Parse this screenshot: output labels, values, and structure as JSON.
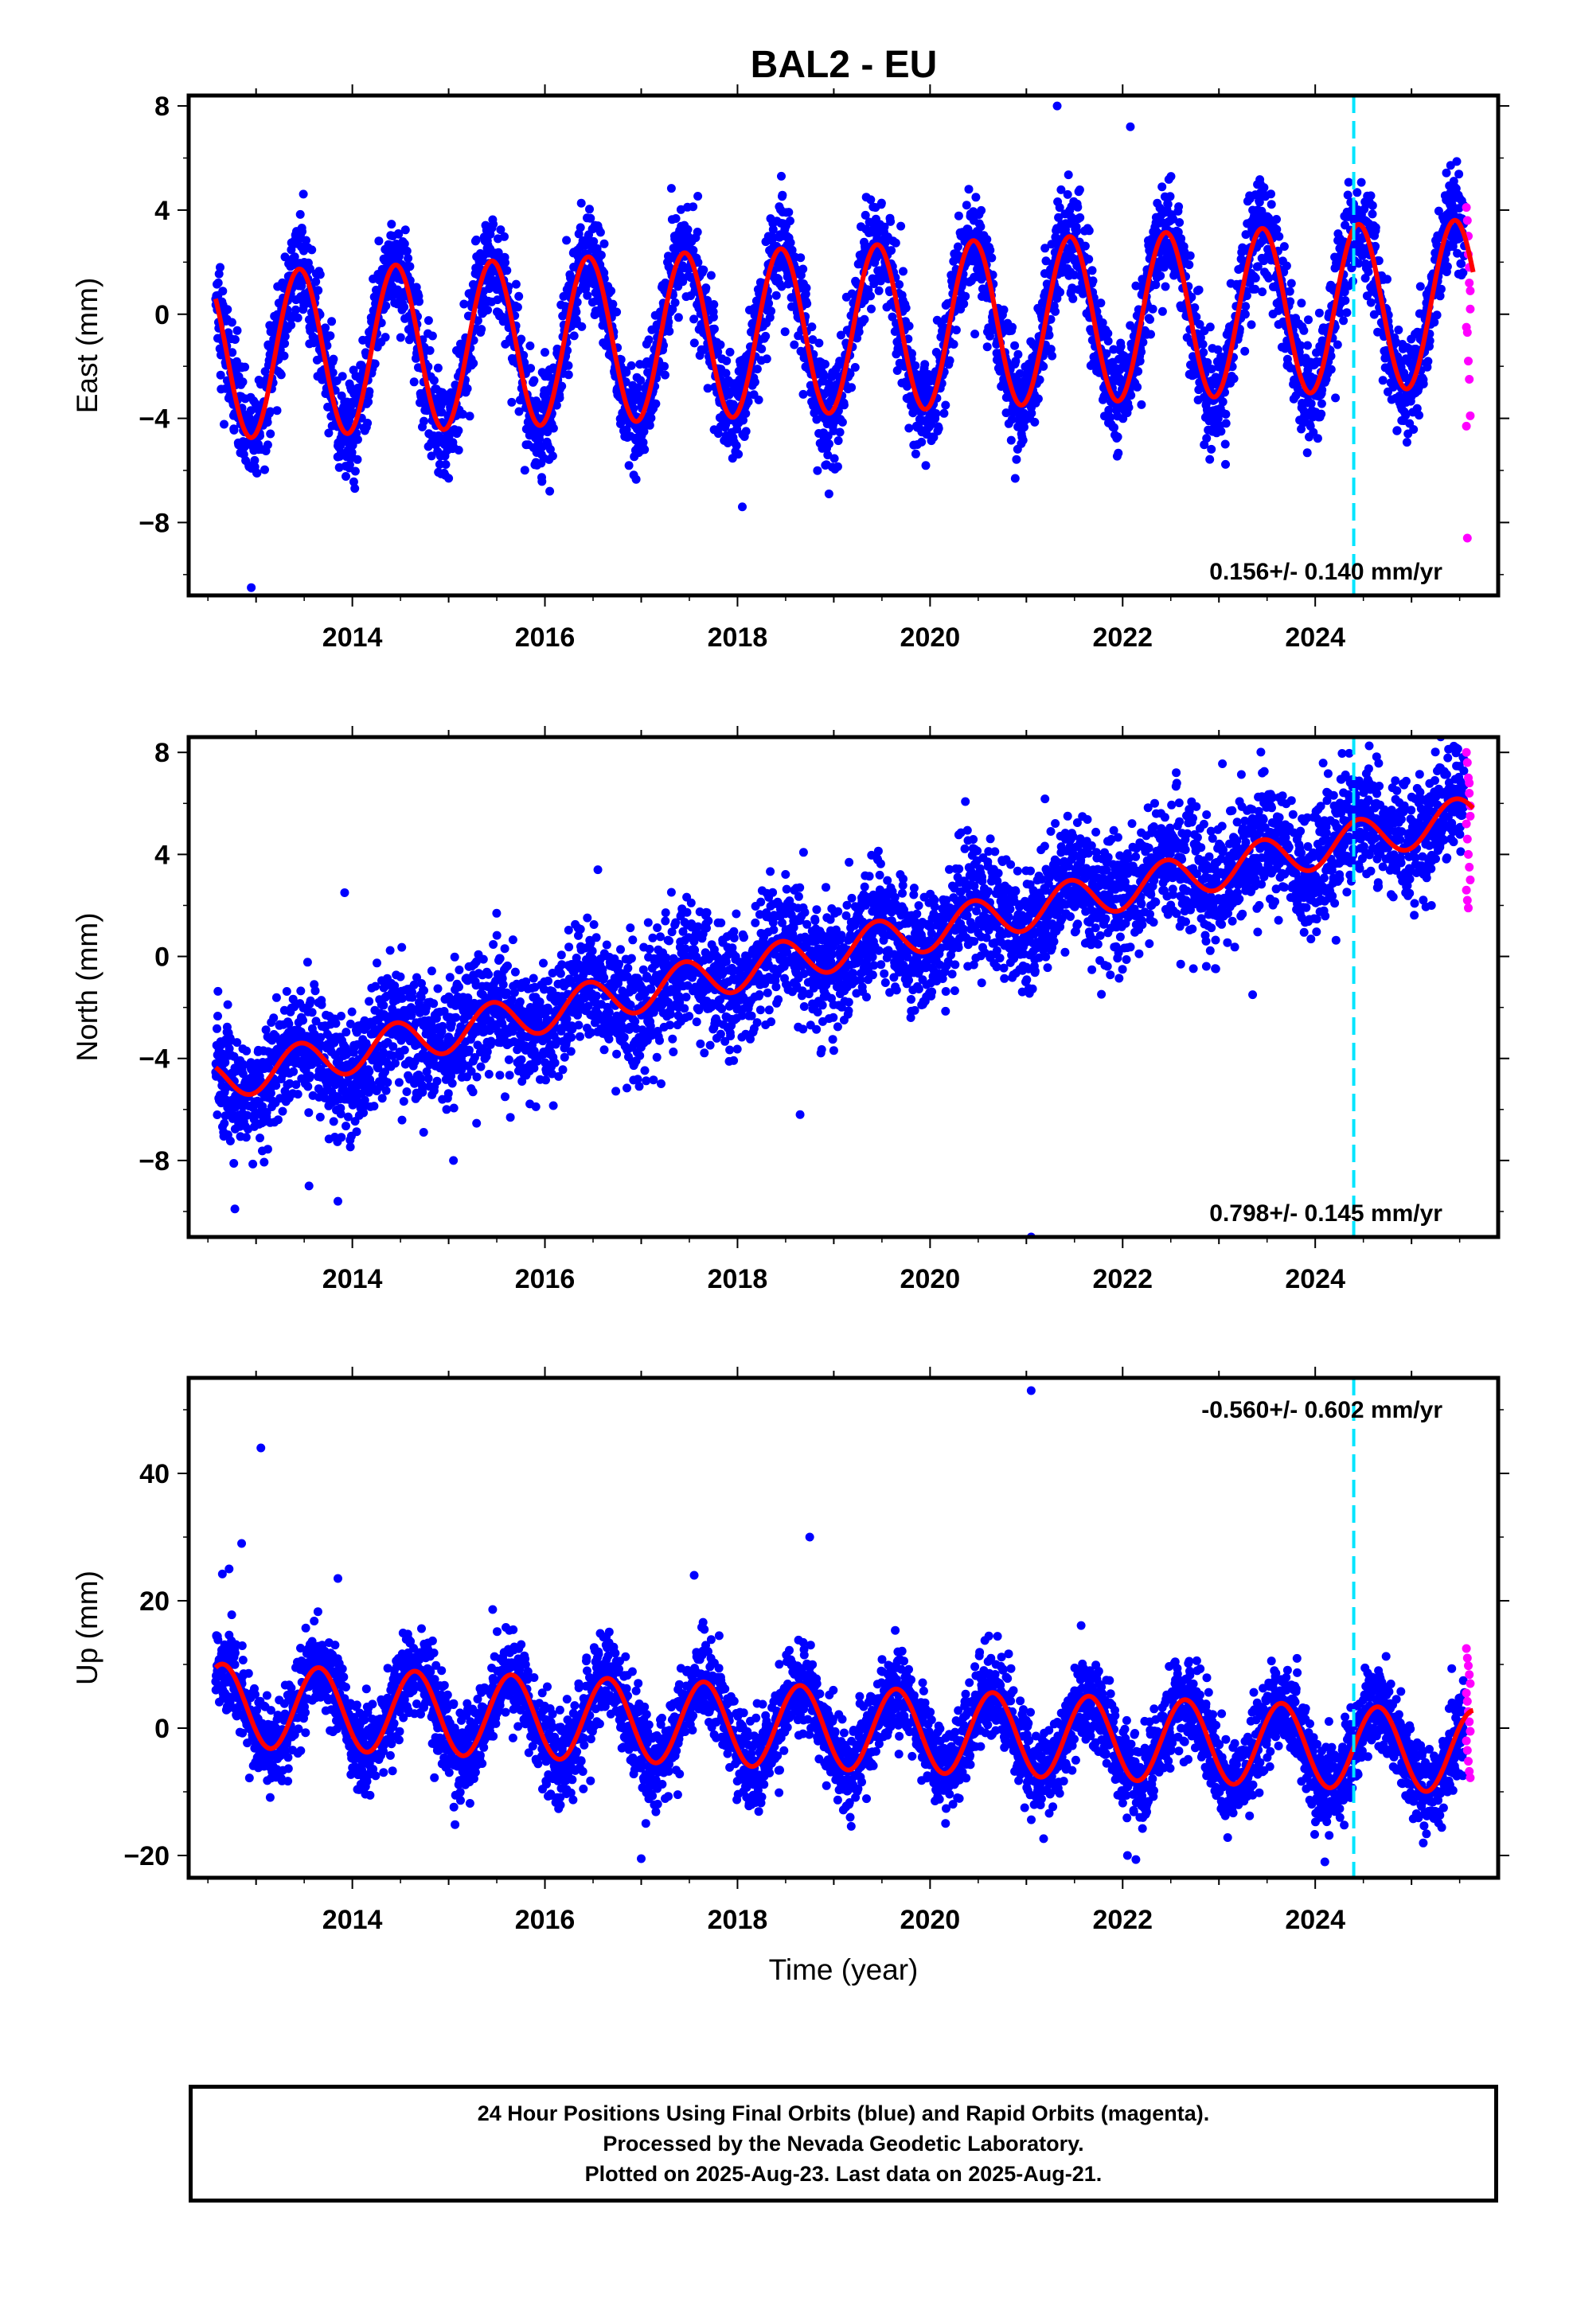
{
  "figure_title": "BAL2 - EU",
  "colors": {
    "final_orbits": "#0000ff",
    "rapid_orbits": "#ff00ff",
    "model_fit": "#ff0000",
    "equipment_change": "#00e5ff",
    "frame": "#000000"
  },
  "chart_data": [
    {
      "type": "scatter",
      "name": "east",
      "ylabel": "East (mm)",
      "xlabel": "",
      "xlim": [
        2012.3,
        2025.9
      ],
      "ylim": [
        -10.8,
        8.4
      ],
      "yticks": [
        -8,
        -4,
        0,
        4,
        8
      ],
      "xticks": [
        2014,
        2016,
        2018,
        2020,
        2022,
        2024
      ],
      "rate_label": "0.156+/- 0.140 mm/yr",
      "rate_position": "bottom-right",
      "equipment_change_year": 2024.4,
      "model": {
        "offset": -1.6,
        "trend": 0.156,
        "amp_start": 3.2,
        "amp_end": 3.2,
        "phase_peak": 0.45,
        "amp_growth": 0
      },
      "noise_sd": 1.0,
      "outliers": [
        [
          2012.95,
          -10.5
        ],
        [
          2018.05,
          -7.4
        ],
        [
          2021.32,
          8.0
        ],
        [
          2022.08,
          7.2
        ],
        [
          2018.95,
          -6.9
        ],
        [
          2016.05,
          -6.8
        ]
      ],
      "rapid_values": [
        4.1,
        3.6,
        2.3,
        1.8,
        0.9,
        -0.5,
        -0.7,
        -1.8,
        -2.5,
        -3.9,
        -4.3,
        -8.6,
        3.0,
        1.2,
        0.2
      ]
    },
    {
      "type": "scatter",
      "name": "north",
      "ylabel": "North (mm)",
      "xlabel": "",
      "xlim": [
        2012.3,
        2025.9
      ],
      "ylim": [
        -11.0,
        8.6
      ],
      "yticks": [
        -8,
        -4,
        0,
        4,
        8
      ],
      "xticks": [
        2014,
        2016,
        2018,
        2020,
        2022,
        2024
      ],
      "rate_label": "0.798+/- 0.145 mm/yr",
      "rate_position": "bottom-right",
      "equipment_change_year": 2024.4,
      "model": {
        "offset": -4.9,
        "trend": 0.798,
        "amp_start": 0.8,
        "amp_end": 0.8,
        "phase_peak": 0.45,
        "amp_growth": 0
      },
      "noise_sd": 1.2,
      "outliers": [
        [
          2013.92,
          2.5
        ],
        [
          2012.78,
          -9.9
        ],
        [
          2013.55,
          -9.0
        ],
        [
          2013.85,
          -9.6
        ],
        [
          2015.05,
          -8.0
        ],
        [
          2018.65,
          -6.2
        ],
        [
          2021.05,
          -11.0
        ],
        [
          2023.35,
          -1.5
        ],
        [
          2016.55,
          3.4
        ]
      ],
      "rapid_values": [
        8.0,
        7.6,
        7.0,
        6.4,
        5.9,
        5.2,
        4.6,
        4.0,
        3.5,
        3.0,
        2.6,
        2.2,
        1.9,
        6.8,
        5.5
      ]
    },
    {
      "type": "scatter",
      "name": "up",
      "ylabel": "Up (mm)",
      "xlabel": "Time (year)",
      "xlim": [
        2012.3,
        2025.9
      ],
      "ylim": [
        -23.5,
        55.0
      ],
      "yticks": [
        -20,
        0,
        20,
        40
      ],
      "xticks": [
        2014,
        2016,
        2018,
        2020,
        2022,
        2024
      ],
      "rate_label": "-0.560+/- 0.602 mm/yr",
      "rate_position": "top-right",
      "equipment_change_year": 2024.4,
      "model": {
        "offset": 3.6,
        "trend": -0.56,
        "amp_start": 6.5,
        "amp_end": 6.5,
        "phase_peak": 0.65,
        "amp_growth": 0
      },
      "noise_sd": 3.5,
      "outliers": [
        [
          2013.05,
          44.0
        ],
        [
          2021.05,
          53.0
        ],
        [
          2018.75,
          30.0
        ],
        [
          2012.85,
          29.0
        ],
        [
          2012.72,
          25.0
        ],
        [
          2013.85,
          23.5
        ],
        [
          2017.55,
          24.0
        ],
        [
          2012.65,
          24.2
        ],
        [
          2017.0,
          -20.5
        ],
        [
          2024.1,
          -21.0
        ],
        [
          2022.05,
          -20.0
        ]
      ],
      "rapid_values": [
        12.5,
        11.0,
        9.8,
        8.4,
        7.0,
        5.5,
        4.2,
        2.6,
        1.0,
        -0.5,
        -2.0,
        -3.5,
        -5.2,
        -6.8,
        -7.8
      ]
    }
  ],
  "caption": {
    "line1": "24 Hour Positions Using Final Orbits (blue) and Rapid Orbits (magenta).",
    "line2": "Processed by the Nevada Geodetic Laboratory.",
    "line3": "Plotted on 2025-Aug-23. Last data on 2025-Aug-21."
  }
}
